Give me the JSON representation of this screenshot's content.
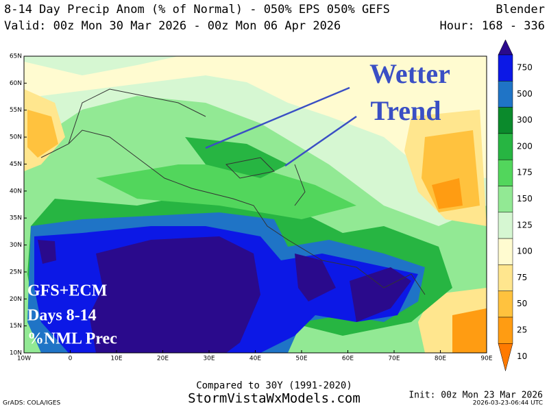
{
  "header": {
    "line1": "8-14 Day Precip Anom (% of Normal) - 050% EPS 050% GEFS",
    "model": "Blender",
    "valid": "Valid: 00z Mon 30 Mar 2026 - 00z Mon 06 Apr 2026",
    "hour": "Hour: 168 - 336"
  },
  "map": {
    "lat_labels": [
      "65N",
      "60N",
      "55N",
      "50N",
      "45N",
      "40N",
      "35N",
      "30N",
      "25N",
      "20N",
      "15N",
      "10N"
    ],
    "lon_labels": [
      "10W",
      "0",
      "10E",
      "20E",
      "30E",
      "40E",
      "50E",
      "60E",
      "70E",
      "80E",
      "90E"
    ]
  },
  "colorbar": {
    "levels": [
      750,
      500,
      300,
      200,
      175,
      150,
      125,
      100,
      75,
      50,
      25,
      10
    ],
    "colors": [
      "#2a0a8c",
      "#0c18e6",
      "#1f74c6",
      "#0b8a2c",
      "#27b542",
      "#52d65c",
      "#92e994",
      "#d6f7d2",
      "#fffbd0",
      "#ffe68e",
      "#ffc23e",
      "#ff9c12",
      "#ff7a00"
    ]
  },
  "annotations": {
    "trend1": "Wetter",
    "trend2": "Trend",
    "box1": "GFS+ECM",
    "box2": "Days 8-14",
    "box3": "%NML Prec"
  },
  "footer": {
    "compared": "Compared to 30Y (1991-2020)",
    "site": "StormVistaWxModels.com",
    "init": "Init: 00z Mon 23 Mar 2026",
    "grads": "GrADS: COLA/IGES",
    "stamp": "2026-03-23-06:44 UTC"
  }
}
